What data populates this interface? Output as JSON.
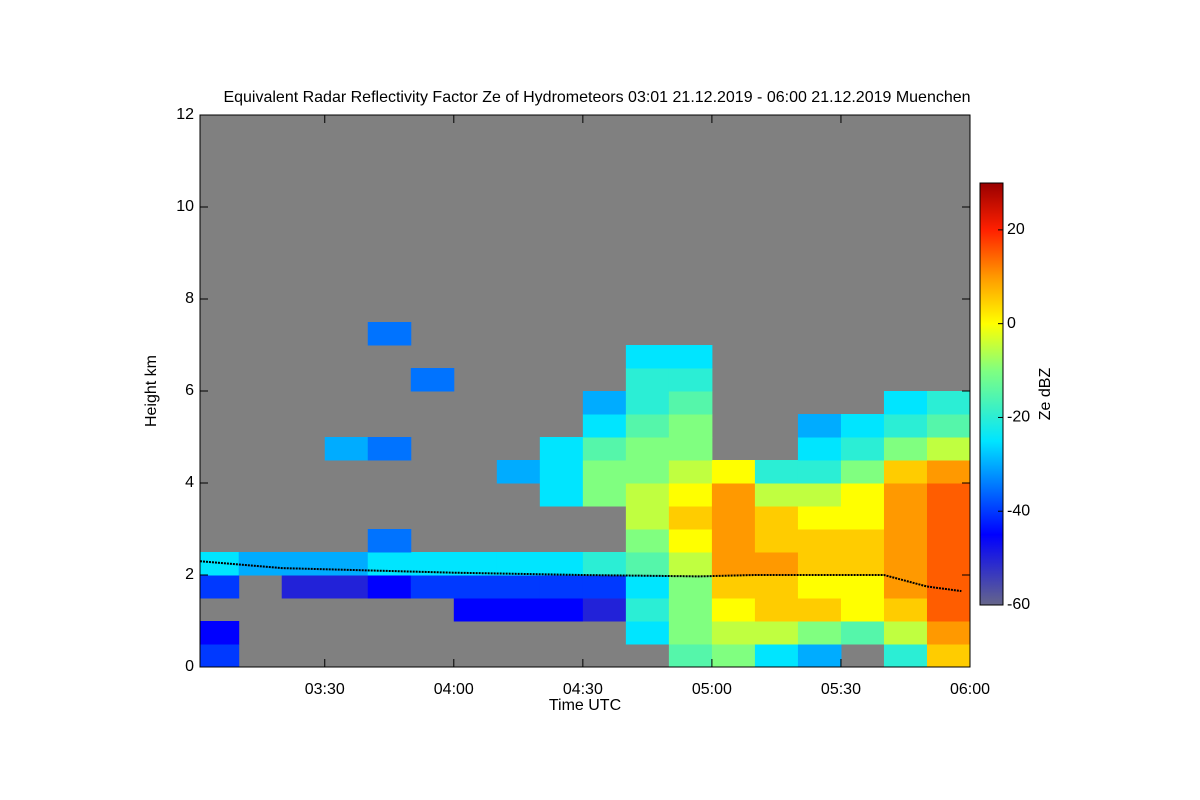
{
  "chart_data": {
    "type": "heatmap",
    "title": "Equivalent Radar Reflectivity Factor Ze of Hydrometeors   03:01 21.12.2019 - 06:00 21.12.2019 Muenchen",
    "x_label": "Time UTC",
    "y_label": "Height km",
    "colorbar_label": "Ze dBZ",
    "background": "#808080",
    "xlim": [
      "03:01",
      "06:00"
    ],
    "xticks": [
      "03:30",
      "04:00",
      "04:30",
      "05:00",
      "05:30",
      "06:00"
    ],
    "ylim": [
      0,
      12
    ],
    "yticks": [
      0,
      2,
      4,
      6,
      8,
      10,
      12
    ],
    "cblim": [
      -60,
      30
    ],
    "cbticks": [
      -60,
      -40,
      -20,
      0,
      20
    ],
    "colormap": [
      {
        "value": -60,
        "color": "#66668a"
      },
      {
        "value": -45,
        "color": "#0000ff"
      },
      {
        "value": -25,
        "color": "#00e5ff"
      },
      {
        "value": -10,
        "color": "#80ff80"
      },
      {
        "value": 0,
        "color": "#ffff00"
      },
      {
        "value": 10,
        "color": "#ff9900"
      },
      {
        "value": 20,
        "color": "#ff2000"
      },
      {
        "value": 30,
        "color": "#990000"
      }
    ],
    "x_edges": [
      "03:01",
      "03:10",
      "03:20",
      "03:30",
      "03:40",
      "03:50",
      "04:00",
      "04:10",
      "04:20",
      "04:30",
      "04:40",
      "04:50",
      "05:00",
      "05:10",
      "05:20",
      "05:30",
      "05:40",
      "05:50",
      "06:00"
    ],
    "y_edges": [
      0,
      0.5,
      1,
      1.5,
      2,
      2.5,
      3,
      3.5,
      4,
      4.5,
      5,
      5.5,
      6,
      6.5,
      7,
      7.5
    ],
    "z": [
      [
        -40,
        null,
        null,
        null,
        null,
        null,
        null,
        null,
        null,
        null,
        null,
        -15,
        -10,
        -25,
        -30,
        null,
        -20,
        5
      ],
      [
        -45,
        null,
        null,
        null,
        null,
        null,
        null,
        null,
        null,
        null,
        -25,
        -10,
        -5,
        -5,
        -10,
        -15,
        -5,
        10
      ],
      [
        null,
        null,
        null,
        null,
        null,
        null,
        -45,
        -45,
        -45,
        -50,
        -20,
        -10,
        0,
        5,
        5,
        0,
        5,
        15
      ],
      [
        -40,
        null,
        -50,
        -50,
        -45,
        -40,
        -40,
        -40,
        -40,
        -40,
        -25,
        -10,
        5,
        5,
        0,
        0,
        10,
        15
      ],
      [
        -25,
        -30,
        -30,
        -30,
        -25,
        -25,
        -25,
        -25,
        -25,
        -20,
        -15,
        -5,
        10,
        10,
        5,
        5,
        10,
        15
      ],
      [
        null,
        null,
        null,
        null,
        -35,
        null,
        null,
        null,
        null,
        null,
        -10,
        0,
        10,
        5,
        5,
        5,
        10,
        15
      ],
      [
        null,
        null,
        null,
        null,
        null,
        null,
        null,
        null,
        null,
        null,
        -5,
        5,
        10,
        5,
        0,
        0,
        10,
        15
      ],
      [
        null,
        null,
        null,
        null,
        null,
        null,
        null,
        null,
        -25,
        -10,
        -5,
        0,
        10,
        -5,
        -5,
        0,
        10,
        15
      ],
      [
        null,
        null,
        null,
        null,
        null,
        null,
        null,
        -30,
        -25,
        -10,
        -10,
        -5,
        0,
        -20,
        -20,
        -10,
        5,
        10
      ],
      [
        null,
        null,
        null,
        -30,
        -35,
        null,
        null,
        null,
        -25,
        -15,
        -10,
        -10,
        null,
        null,
        -25,
        -20,
        -10,
        -5
      ],
      [
        null,
        null,
        null,
        null,
        null,
        null,
        null,
        null,
        null,
        -25,
        -15,
        -10,
        null,
        null,
        -30,
        -25,
        -20,
        -15
      ],
      [
        null,
        null,
        null,
        null,
        null,
        null,
        null,
        null,
        null,
        -30,
        -20,
        -15,
        null,
        null,
        null,
        null,
        -25,
        -20
      ],
      [
        null,
        null,
        null,
        null,
        null,
        -35,
        null,
        null,
        null,
        null,
        -20,
        -20,
        null,
        null,
        null,
        null,
        null,
        null
      ],
      [
        null,
        null,
        null,
        null,
        null,
        null,
        null,
        null,
        null,
        null,
        -25,
        -25,
        null,
        null,
        null,
        null,
        null,
        null
      ],
      [
        null,
        null,
        null,
        null,
        -35,
        null,
        null,
        null,
        null,
        null,
        null,
        null,
        null,
        null,
        null,
        null,
        null,
        null
      ]
    ],
    "overlay": {
      "color": "#000000",
      "x": [
        "03:01",
        "03:20",
        "04:00",
        "04:30",
        "04:57",
        "05:10",
        "05:40",
        "05:50",
        "05:58"
      ],
      "y": [
        2.3,
        2.15,
        2.05,
        2.0,
        1.97,
        2.0,
        2.0,
        1.75,
        1.65
      ]
    }
  }
}
